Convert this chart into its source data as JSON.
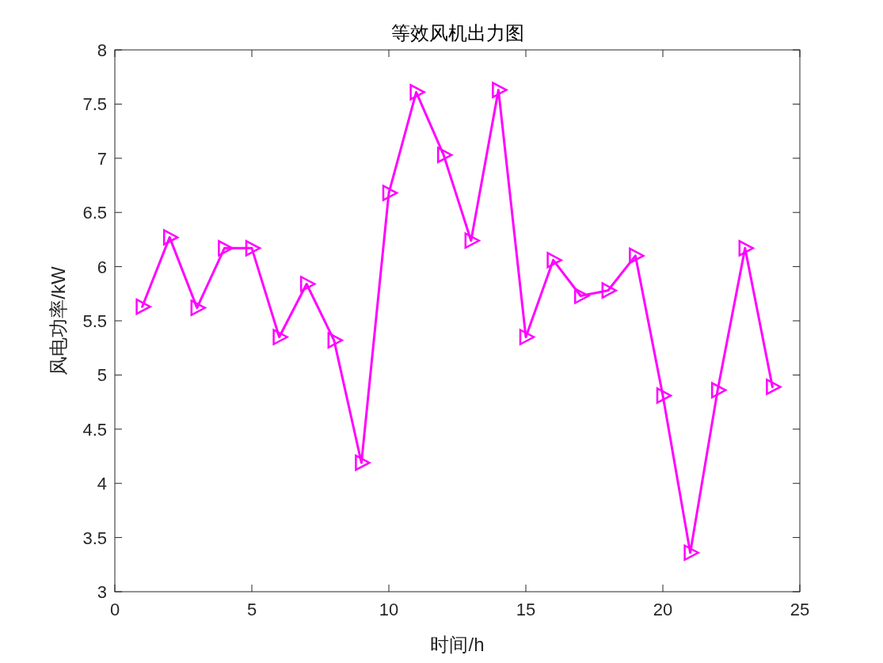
{
  "chart_data": {
    "type": "line",
    "title": "等效风机出力图",
    "xlabel": "时间/h",
    "ylabel": "风电功率/kW",
    "x": [
      1,
      2,
      3,
      4,
      5,
      6,
      7,
      8,
      9,
      10,
      11,
      12,
      13,
      14,
      15,
      16,
      17,
      18,
      19,
      20,
      21,
      22,
      23,
      24
    ],
    "series": [
      {
        "color": "#ff00ff",
        "values": [
          5.63,
          6.27,
          5.62,
          6.17,
          6.17,
          5.35,
          5.84,
          5.32,
          4.19,
          6.68,
          7.61,
          7.03,
          6.24,
          7.63,
          5.35,
          6.06,
          5.73,
          5.78,
          6.1,
          4.81,
          3.36,
          4.86,
          6.17,
          4.89
        ]
      }
    ],
    "xlim": [
      0,
      25
    ],
    "xticks": [
      0,
      5,
      10,
      15,
      20,
      25
    ],
    "ylim": [
      3,
      8
    ],
    "yticks": [
      3,
      3.5,
      4,
      4.5,
      5,
      5.5,
      6,
      6.5,
      7,
      7.5,
      8
    ],
    "marker": "triangle",
    "line_style": "solid",
    "grid": false
  }
}
